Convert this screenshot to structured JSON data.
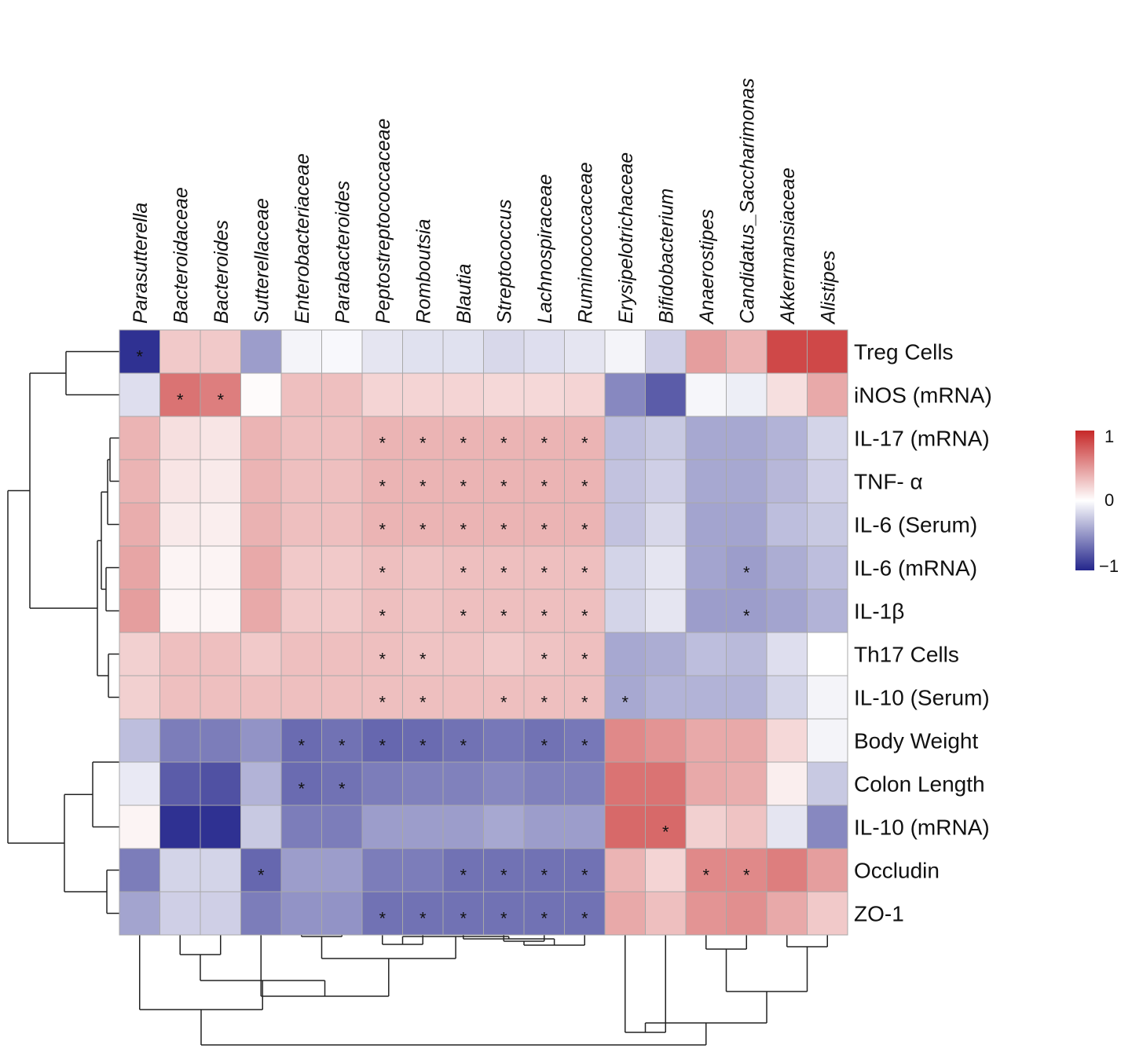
{
  "chart_data": {
    "type": "heatmap",
    "columns": [
      "Parasutterella",
      "Bacteroidaceae",
      "Bacteroides",
      "Sutterellaceae",
      "Enterobacteriaceae",
      "Parabacteroides",
      "Peptostreptococcaceae",
      "Romboutsia",
      "Blautia",
      "Streptococcus",
      "Lachnospiraceae",
      "Ruminococcaceae",
      "Erysipelotrichaceae",
      "Bifidobacterium",
      "Anaerostipes",
      "Candidatus_Saccharimonas",
      "Akkermansiaceae",
      "Alistipes"
    ],
    "rows": [
      "Treg Cells",
      "iNOS (mRNA)",
      "IL-17 (mRNA)",
      "TNF- α",
      "IL-6 (Serum)",
      "IL-6 (mRNA)",
      "IL-1β",
      "Th17 Cells",
      "IL-10 (Serum)",
      "Body Weight",
      "Colon Length",
      "IL-10 (mRNA)",
      "Occludin",
      "ZO-1"
    ],
    "values": [
      [
        -0.95,
        0.25,
        0.25,
        -0.45,
        -0.05,
        -0.03,
        -0.12,
        -0.14,
        -0.14,
        -0.18,
        -0.15,
        -0.12,
        -0.05,
        -0.22,
        0.45,
        0.35,
        0.85,
        0.85
      ],
      [
        -0.15,
        0.65,
        0.6,
        0.02,
        0.3,
        0.3,
        0.2,
        0.2,
        0.2,
        0.18,
        0.18,
        0.2,
        -0.55,
        -0.75,
        -0.04,
        -0.08,
        0.15,
        0.4
      ],
      [
        0.35,
        0.15,
        0.12,
        0.35,
        0.3,
        0.3,
        0.35,
        0.35,
        0.35,
        0.35,
        0.35,
        0.35,
        -0.3,
        -0.25,
        -0.4,
        -0.4,
        -0.35,
        -0.2
      ],
      [
        0.35,
        0.12,
        0.1,
        0.35,
        0.3,
        0.3,
        0.35,
        0.35,
        0.35,
        0.35,
        0.35,
        0.35,
        -0.28,
        -0.22,
        -0.4,
        -0.4,
        -0.33,
        -0.22
      ],
      [
        0.38,
        0.1,
        0.08,
        0.36,
        0.3,
        0.3,
        0.35,
        0.35,
        0.35,
        0.35,
        0.35,
        0.35,
        -0.28,
        -0.18,
        -0.42,
        -0.42,
        -0.3,
        -0.25
      ],
      [
        0.42,
        0.05,
        0.05,
        0.4,
        0.25,
        0.25,
        0.3,
        0.28,
        0.3,
        0.3,
        0.3,
        0.3,
        -0.2,
        -0.12,
        -0.42,
        -0.45,
        -0.38,
        -0.3
      ],
      [
        0.45,
        0.04,
        0.04,
        0.4,
        0.25,
        0.25,
        0.3,
        0.28,
        0.3,
        0.3,
        0.3,
        0.3,
        -0.2,
        -0.12,
        -0.45,
        -0.45,
        -0.42,
        -0.35
      ],
      [
        0.22,
        0.3,
        0.3,
        0.25,
        0.3,
        0.3,
        0.3,
        0.28,
        0.28,
        0.25,
        0.28,
        0.3,
        -0.4,
        -0.38,
        -0.3,
        -0.32,
        -0.15,
        0.0
      ],
      [
        0.22,
        0.3,
        0.3,
        0.3,
        0.3,
        0.3,
        0.3,
        0.3,
        0.3,
        0.3,
        0.3,
        0.3,
        -0.4,
        -0.35,
        -0.35,
        -0.35,
        -0.2,
        -0.05
      ],
      [
        -0.3,
        -0.6,
        -0.6,
        -0.5,
        -0.68,
        -0.65,
        -0.7,
        -0.68,
        -0.65,
        -0.62,
        -0.65,
        -0.62,
        0.55,
        0.5,
        0.4,
        0.4,
        0.18,
        -0.05
      ],
      [
        -0.1,
        -0.75,
        -0.8,
        -0.35,
        -0.68,
        -0.65,
        -0.6,
        -0.58,
        -0.58,
        -0.55,
        -0.58,
        -0.58,
        0.65,
        0.65,
        0.4,
        0.38,
        0.08,
        -0.25
      ],
      [
        0.05,
        -0.95,
        -0.95,
        -0.25,
        -0.6,
        -0.6,
        -0.45,
        -0.45,
        -0.45,
        -0.4,
        -0.45,
        -0.45,
        0.7,
        0.7,
        0.22,
        0.28,
        -0.12,
        -0.55
      ],
      [
        -0.6,
        -0.2,
        -0.2,
        -0.7,
        -0.45,
        -0.45,
        -0.6,
        -0.6,
        -0.65,
        -0.65,
        -0.65,
        -0.65,
        0.35,
        0.2,
        0.55,
        0.55,
        0.6,
        0.45
      ],
      [
        -0.42,
        -0.22,
        -0.22,
        -0.6,
        -0.5,
        -0.5,
        -0.65,
        -0.65,
        -0.65,
        -0.65,
        -0.65,
        -0.65,
        0.4,
        0.3,
        0.5,
        0.52,
        0.4,
        0.25
      ]
    ],
    "significance": [
      [
        0
      ],
      [
        1,
        2
      ],
      [
        6,
        7,
        8,
        9,
        10,
        11
      ],
      [
        6,
        7,
        8,
        9,
        10,
        11
      ],
      [
        6,
        7,
        8,
        9,
        10,
        11
      ],
      [
        6,
        8,
        9,
        10,
        11,
        15
      ],
      [
        6,
        8,
        9,
        10,
        11,
        15
      ],
      [
        6,
        7,
        10,
        11
      ],
      [
        6,
        7,
        9,
        10,
        11,
        12
      ],
      [
        4,
        5,
        6,
        7,
        8,
        10,
        11
      ],
      [
        4,
        5
      ],
      [
        13
      ],
      [
        3,
        8,
        9,
        10,
        11,
        14,
        15
      ],
      [
        6,
        7,
        8,
        9,
        10,
        11
      ]
    ],
    "significance_marker": "*",
    "color_scale": {
      "min": -1,
      "mid": 0,
      "max": 1,
      "low_color": "#24268c",
      "mid_color": "#ffffff",
      "high_color": "#c62828"
    },
    "legend_ticks": [
      "1",
      "0",
      "−1"
    ],
    "row_dendrogram": true,
    "column_dendrogram": true
  }
}
